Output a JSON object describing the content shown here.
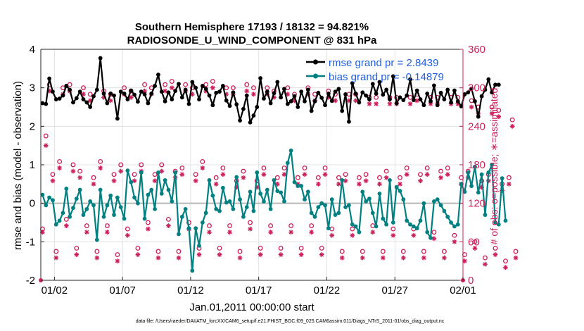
{
  "chart_data": {
    "type": "line",
    "title": "Southern Hemisphere 17193 / 18132 = 94.821%",
    "subtitle": "RADIOSONDE_U_WIND_COMPONENT @ 831 hPa",
    "xlabel": "Jan.01,2011 00:00:00 start",
    "ylabel_left": "rmse and bias (model - observation)",
    "ylabel_right": "# of obs: o=possible; ∗=assimilated",
    "footnote": "data file: /Users/raeder/DAI/ATM_forcXX/CAM6_setup/f.e21.FHIST_BGC.f09_025.CAM6assim.011/Diags_NTrS_2011-01/obs_diag_output.nc",
    "xlim_days": [
      0,
      31
    ],
    "ylim_left": [
      -2,
      4
    ],
    "ylim_right": [
      0,
      360
    ],
    "x_ticks": [
      {
        "day": 1,
        "label": "01/02"
      },
      {
        "day": 6,
        "label": "01/07"
      },
      {
        "day": 11,
        "label": "01/12"
      },
      {
        "day": 16,
        "label": "01/17"
      },
      {
        "day": 21,
        "label": "01/22"
      },
      {
        "day": 26,
        "label": "01/27"
      },
      {
        "day": 31,
        "label": "02/01"
      }
    ],
    "y_ticks_left": [
      "-2",
      "-1",
      "0",
      "1",
      "2",
      "3",
      "4"
    ],
    "y_ticks_right": [
      "0",
      "60",
      "120",
      "180",
      "240",
      "300",
      "360"
    ],
    "grid": true,
    "legend_position": "top-right",
    "steps_per_day": 4,
    "series": [
      {
        "name": "rmse",
        "legend": "rmse grand pr = 2.8439",
        "color": "#000000",
        "values": [
          2.6,
          2.58,
          3.24,
          2.9,
          2.7,
          2.72,
          2.8,
          3.05,
          2.95,
          2.62,
          2.73,
          2.9,
          2.7,
          2.62,
          2.5,
          2.78,
          2.95,
          3.77,
          2.85,
          2.6,
          2.85,
          2.8,
          2.2,
          2.9,
          2.85,
          2.7,
          2.93,
          2.82,
          2.64,
          2.9,
          2.83,
          2.6,
          2.85,
          3.05,
          3.34,
          2.9,
          2.65,
          2.88,
          2.7,
          2.92,
          3.1,
          2.75,
          2.95,
          2.58,
          3.15,
          3.0,
          2.7,
          3.05,
          2.97,
          2.8,
          2.55,
          2.87,
          2.9,
          3.05,
          2.67,
          2.53,
          2.88,
          2.57,
          2.15,
          2.45,
          2.8,
          2.1,
          2.28,
          2.5,
          3.25,
          2.72,
          2.9,
          2.6,
          2.86,
          3.15,
          2.75,
          2.97,
          2.58,
          2.65,
          2.78,
          2.5,
          2.9,
          2.65,
          2.95,
          2.4,
          2.65,
          2.87,
          2.74,
          2.55,
          2.85,
          2.66,
          2.9,
          2.97,
          2.4,
          2.83,
          2.12,
          3.12,
          2.85,
          2.62,
          2.88,
          2.8,
          2.7,
          3.1,
          2.85,
          3.15,
          2.82,
          2.95,
          2.7,
          3.3,
          2.6,
          2.75,
          2.68,
          2.8,
          3.22,
          2.68,
          2.93,
          2.7,
          2.55,
          2.85,
          2.65,
          3.06,
          2.55,
          2.87,
          2.7,
          2.95,
          2.62,
          2.93,
          2.65,
          2.52,
          2.83,
          2.88,
          2.98,
          2.65,
          2.25,
          2.78,
          2.95,
          3.22,
          2.88,
          3.08,
          3.08
        ]
      },
      {
        "name": "bias",
        "legend": "bias grand pr = -0.14879",
        "color": "#008080",
        "values": [
          0.22,
          -0.05,
          0.15,
          0.08,
          -0.55,
          -0.45,
          -0.25,
          0.38,
          -0.35,
          -0.12,
          0.12,
          0.35,
          -0.3,
          -0.15,
          0.05,
          -0.05,
          -0.95,
          0.35,
          -0.35,
          -0.05,
          0.2,
          -0.3,
          0.15,
          -0.1,
          -0.4,
          0.85,
          0.55,
          0.15,
          0.0,
          0.8,
          -0.4,
          0.22,
          0.35,
          -0.15,
          0.8,
          0.25,
          0.6,
          0.35,
          0.05,
          0.8,
          -0.8,
          -0.35,
          -0.15,
          -0.65,
          -1.75,
          -0.65,
          -1.1,
          -0.5,
          -0.25,
          0.6,
          0.2,
          -0.15,
          -0.2,
          0.4,
          0.02,
          0.05,
          -0.15,
          0.68,
          0.1,
          -0.35,
          -0.1,
          0.3,
          -0.2,
          0.8,
          0.25,
          0.05,
          0.35,
          -0.15,
          0.6,
          0.32,
          0.28,
          0.05,
          1.05,
          1.37,
          0.55,
          0.45,
          0.45,
          0.1,
          0.3,
          -0.25,
          -0.35,
          -0.1,
          0.0,
          -0.05,
          -0.65,
          0.1,
          -0.3,
          -0.25,
          0.6,
          -0.1,
          -0.05,
          -0.55,
          -0.6,
          -0.75,
          0.3,
          0.05,
          0.12,
          -0.25,
          -0.6,
          0.25,
          -0.4,
          -0.55,
          0.6,
          -0.5,
          0.42,
          0.32,
          0.1,
          -0.45,
          -0.55,
          -0.6,
          -0.65,
          -0.45,
          0.0,
          -0.75,
          -0.9,
          0.05,
          0.1,
          -0.05,
          -0.2,
          -0.35,
          -0.5,
          -0.6,
          -0.55,
          0.5,
          0.3,
          0.8,
          0.45,
          0.95,
          0.28,
          0.75,
          -0.3,
          0.8,
          1.0,
          -0.5,
          -0.55,
          0.65,
          -0.45
        ]
      },
      {
        "name": "possible",
        "legend": "o = possible",
        "color": "#cc1f5c",
        "axis": "right",
        "values": [
          80,
          225,
          305,
          165,
          45,
          185,
          300,
          95,
          305,
          180,
          50,
          170,
          300,
          85,
          290,
          160,
          45,
          185,
          295,
          85,
          290,
          165,
          40,
          180,
          300,
          80,
          295,
          165,
          50,
          180,
          305,
          90,
          300,
          165,
          45,
          180,
          305,
          95,
          310,
          170,
          45,
          175,
          305,
          90,
          300,
          165,
          50,
          185,
          305,
          85,
          310,
          160,
          50,
          175,
          300,
          85,
          300,
          155,
          45,
          170,
          305,
          90,
          300,
          155,
          50,
          175,
          300,
          85,
          295,
          160,
          50,
          175,
          300,
          85,
          290,
          160,
          50,
          175,
          300,
          85,
          290,
          160,
          50,
          175,
          295,
          80,
          290,
          160,
          45,
          165,
          290,
          80,
          290,
          160,
          45,
          165,
          285,
          85,
          285,
          160,
          45,
          170,
          285,
          80,
          285,
          160,
          45,
          175,
          285,
          80,
          290,
          165,
          45,
          175,
          285,
          75,
          285,
          170,
          45,
          175,
          285,
          70,
          285,
          160,
          40,
          170,
          280,
          60,
          270,
          155,
          35,
          165,
          270,
          50,
          265,
          150,
          30,
          160,
          250,
          45
        ]
      },
      {
        "name": "assimilated",
        "legend": "∗ = assimilated",
        "color": "#cc1f5c",
        "axis": "right",
        "values": [
          75,
          210,
          295,
          155,
          35,
          175,
          290,
          85,
          295,
          170,
          40,
          160,
          290,
          75,
          280,
          150,
          35,
          175,
          285,
          75,
          280,
          155,
          30,
          170,
          290,
          70,
          285,
          155,
          40,
          170,
          295,
          80,
          290,
          155,
          35,
          170,
          295,
          85,
          300,
          160,
          35,
          165,
          295,
          80,
          290,
          155,
          40,
          175,
          295,
          75,
          300,
          150,
          40,
          165,
          290,
          75,
          290,
          145,
          35,
          160,
          295,
          80,
          290,
          145,
          40,
          165,
          290,
          75,
          285,
          150,
          40,
          165,
          290,
          75,
          280,
          150,
          40,
          165,
          290,
          75,
          280,
          150,
          40,
          165,
          285,
          70,
          280,
          150,
          35,
          155,
          280,
          70,
          280,
          150,
          35,
          155,
          275,
          75,
          275,
          150,
          35,
          160,
          275,
          70,
          275,
          150,
          35,
          165,
          275,
          70,
          280,
          155,
          35,
          165,
          275,
          65,
          275,
          160,
          35,
          165,
          275,
          60,
          275,
          150,
          30,
          160,
          270,
          50,
          260,
          145,
          25,
          155,
          260,
          40,
          255,
          140,
          20,
          150,
          240,
          35
        ]
      }
    ]
  }
}
